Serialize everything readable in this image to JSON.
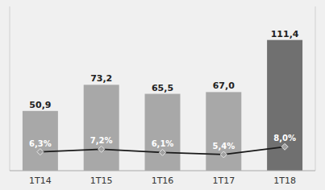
{
  "chart_data": {
    "type": "bar",
    "categories": [
      "1T14",
      "1T15",
      "1T16",
      "1T17",
      "1T18"
    ],
    "series": [
      {
        "type": "bar",
        "colors": [
          "#a8a8a8",
          "#a8a8a8",
          "#a8a8a8",
          "#a8a8a8",
          "#707070"
        ],
        "values": [
          50.9,
          73.2,
          65.5,
          67.0,
          111.4
        ],
        "value_labels": [
          "50,9",
          "73,2",
          "65,5",
          "67,0",
          "111,4"
        ],
        "data_labels": true
      },
      {
        "type": "line",
        "axis": "y2",
        "color": "#1a1a1a",
        "marker": "diamond",
        "values": [
          6.3,
          7.2,
          6.1,
          5.4,
          8.0
        ],
        "value_labels": [
          "6,3%",
          "7,2%",
          "6,1%",
          "5,4%",
          "8,0%"
        ],
        "data_labels": true
      }
    ],
    "ylim": [
      0,
      140
    ],
    "y2lim": [
      0,
      55
    ],
    "tick_labels": "x",
    "grid": false
  }
}
